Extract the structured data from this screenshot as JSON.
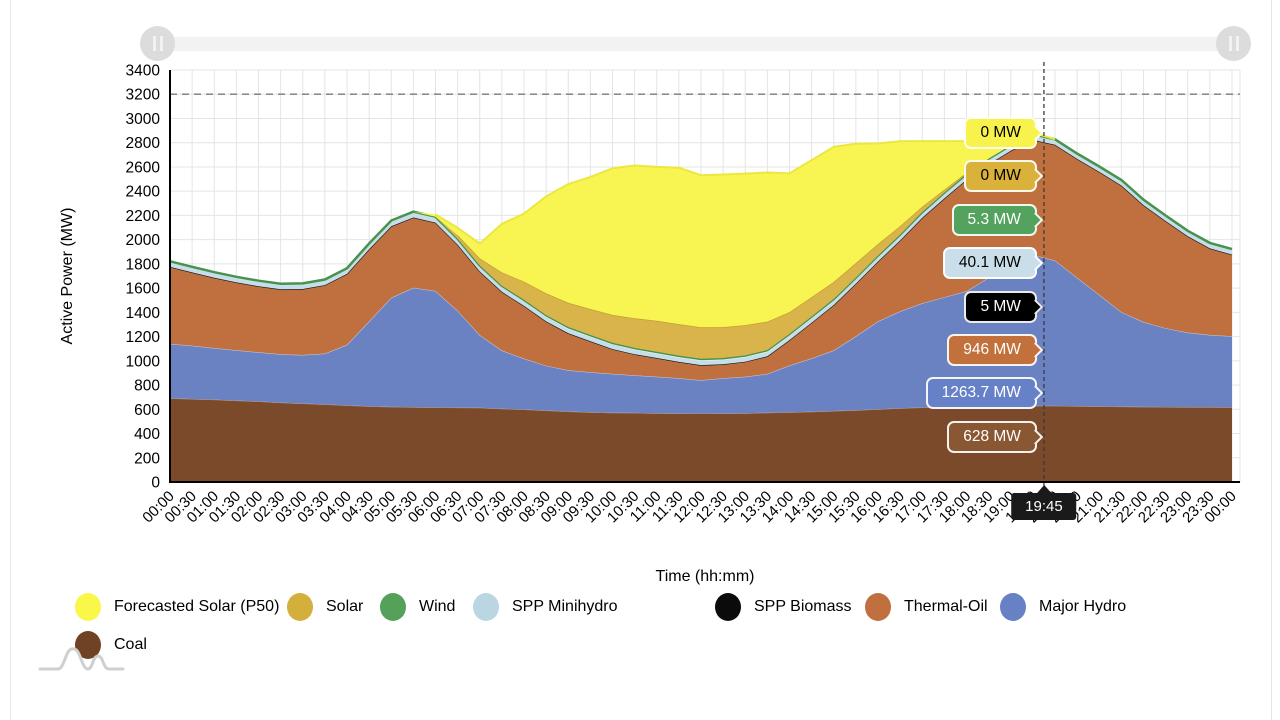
{
  "axes": {
    "y_title": "Active Power (MW)",
    "x_title": "Time (hh:mm)",
    "y_min": 0,
    "y_max": 3400,
    "y_step": 200,
    "reference_line": 3200
  },
  "scrollbar": {
    "grip_icon": "pause-bars"
  },
  "chart_data": {
    "type": "area",
    "stacked": true,
    "title": "",
    "xlabel": "Time (hh:mm)",
    "ylabel": "Active Power (MW)",
    "ylim": [
      0,
      3400
    ],
    "grid": true,
    "legend_position": "bottom",
    "x": [
      "00:00",
      "00:30",
      "01:00",
      "01:30",
      "02:00",
      "02:30",
      "03:00",
      "03:30",
      "04:00",
      "04:30",
      "05:00",
      "05:30",
      "06:00",
      "06:30",
      "07:00",
      "07:30",
      "08:00",
      "08:30",
      "09:00",
      "09:30",
      "10:00",
      "10:30",
      "11:00",
      "11:30",
      "12:00",
      "12:30",
      "13:00",
      "13:30",
      "14:00",
      "14:30",
      "15:00",
      "15:30",
      "16:00",
      "16:30",
      "17:00",
      "17:30",
      "18:00",
      "18:30",
      "19:00",
      "19:30",
      "20:00",
      "20:30",
      "21:00",
      "21:30",
      "22:00",
      "22:30",
      "23:00",
      "23:30",
      "00:00"
    ],
    "crosshair": {
      "time": "19:45",
      "index": 39.5
    },
    "series": [
      {
        "key": "coal",
        "name": "Coal",
        "color": "#7B4A2A",
        "tooltip": {
          "label": "628 MW",
          "bg": "#8A5733",
          "fg": "#ffffff"
        },
        "values": [
          690,
          685,
          680,
          672,
          665,
          655,
          648,
          640,
          632,
          625,
          620,
          618,
          616,
          614,
          612,
          605,
          598,
          590,
          582,
          576,
          572,
          570,
          568,
          566,
          565,
          566,
          568,
          572,
          576,
          580,
          586,
          592,
          600,
          608,
          615,
          620,
          624,
          626,
          628,
          628,
          628,
          626,
          624,
          622,
          620,
          619,
          618,
          618,
          617
        ]
      },
      {
        "key": "major_hydro",
        "name": "Major Hydro",
        "color": "#6A81C2",
        "tooltip": {
          "label": "1263.7 MW",
          "bg": "#6781C8",
          "fg": "#ffffff"
        },
        "values": [
          450,
          440,
          425,
          415,
          405,
          400,
          400,
          420,
          500,
          700,
          900,
          985,
          960,
          800,
          600,
          480,
          420,
          370,
          340,
          330,
          320,
          310,
          300,
          290,
          275,
          290,
          300,
          320,
          385,
          440,
          500,
          610,
          725,
          800,
          860,
          905,
          950,
          1060,
          1160,
          1245,
          1200,
          1060,
          920,
          780,
          700,
          650,
          615,
          595,
          585
        ]
      },
      {
        "key": "thermal_oil",
        "name": "Thermal-Oil",
        "color": "#C06F3E",
        "tooltip": {
          "label": "946 MW",
          "bg": "#C2713C",
          "fg": "#ffffff"
        },
        "values": [
          630,
          600,
          575,
          555,
          540,
          530,
          540,
          560,
          580,
          590,
          585,
          575,
          560,
          540,
          520,
          480,
          430,
          360,
          300,
          250,
          200,
          170,
          150,
          130,
          120,
          110,
          120,
          140,
          205,
          290,
          370,
          430,
          490,
          580,
          700,
          810,
          916,
          930,
          940,
          945,
          950,
          975,
          1010,
          1040,
          960,
          880,
          790,
          710,
          670
        ]
      },
      {
        "key": "spp_biomass",
        "name": "SPP Biomass",
        "color": "#0B0B0B",
        "tooltip": {
          "label": "5 MW",
          "bg": "#000000",
          "fg": "#ffffff"
        },
        "values": [
          5,
          5,
          5,
          5,
          5,
          5,
          5,
          5,
          5,
          5,
          5,
          5,
          5,
          5,
          5,
          5,
          5,
          5,
          5,
          5,
          5,
          5,
          5,
          5,
          5,
          5,
          5,
          5,
          5,
          5,
          5,
          5,
          5,
          5,
          5,
          5,
          5,
          5,
          5,
          5,
          5,
          5,
          5,
          5,
          5,
          5,
          5,
          5,
          5
        ]
      },
      {
        "key": "spp_minihydro",
        "name": "SPP Minihydro",
        "color": "#C6DEE7",
        "tooltip": {
          "label": "40.1 MW",
          "bg": "#C9DEE9",
          "fg": "#000000"
        },
        "values": [
          40,
          40,
          40,
          40,
          40,
          40,
          40,
          40,
          40,
          40,
          40,
          40,
          40,
          40,
          40,
          40,
          40,
          40,
          40,
          40,
          40,
          40,
          40,
          40,
          40,
          40,
          40,
          40,
          40,
          40,
          40,
          40,
          40,
          40,
          40,
          40,
          40,
          40,
          40,
          40,
          40,
          40,
          40,
          40,
          40,
          40,
          40,
          40,
          40
        ]
      },
      {
        "key": "wind",
        "name": "Wind",
        "color": "#57A15C",
        "tooltip": {
          "label": "5.3 MW",
          "bg": "#53A35F",
          "fg": "#ffffff"
        },
        "values": [
          6,
          6,
          6,
          6,
          6,
          6,
          6,
          6,
          7,
          8,
          8,
          8,
          8,
          9,
          10,
          10,
          11,
          12,
          12,
          12,
          12,
          12,
          12,
          12,
          12,
          12,
          12,
          12,
          11,
          11,
          10,
          10,
          9,
          9,
          8,
          8,
          7,
          7,
          6,
          6,
          5,
          5,
          5,
          5,
          5,
          5,
          5,
          5,
          5
        ]
      },
      {
        "key": "solar",
        "name": "Solar",
        "color": "#D8B44A",
        "tooltip": {
          "label": "0 MW",
          "bg": "#D9B13B",
          "fg": "#000000"
        },
        "values": [
          0,
          0,
          0,
          0,
          0,
          0,
          0,
          0,
          0,
          0,
          0,
          0,
          0,
          30,
          60,
          110,
          150,
          180,
          200,
          215,
          230,
          245,
          255,
          260,
          260,
          255,
          250,
          235,
          180,
          160,
          140,
          120,
          95,
          70,
          45,
          25,
          10,
          2,
          0,
          0,
          0,
          0,
          0,
          0,
          0,
          0,
          0,
          0,
          0
        ]
      },
      {
        "key": "forecast_solar",
        "name": "Forecasted Solar (P50)",
        "color": "#F8F552",
        "tooltip": {
          "label": "0 MW",
          "bg": "#F7F24C",
          "fg": "#000000"
        },
        "values": [
          0,
          0,
          0,
          0,
          0,
          0,
          0,
          0,
          0,
          0,
          0,
          0,
          20,
          60,
          120,
          400,
          560,
          800,
          980,
          1090,
          1210,
          1260,
          1270,
          1290,
          1255,
          1260,
          1250,
          1230,
          1145,
          1130,
          1115,
          985,
          830,
          700,
          540,
          400,
          260,
          140,
          60,
          15,
          0,
          0,
          0,
          0,
          0,
          0,
          0,
          0,
          0
        ]
      }
    ]
  },
  "legend": {
    "items": [
      {
        "label": "Forecasted Solar (P50)",
        "color": "#F9F748"
      },
      {
        "label": "Solar",
        "color": "#D4AF3B"
      },
      {
        "label": "Wind",
        "color": "#55A15A"
      },
      {
        "label": "SPP Minihydro",
        "color": "#B9D6E2"
      },
      {
        "label": "SPP Biomass",
        "color": "#0B0B0B"
      },
      {
        "label": "Thermal-Oil",
        "color": "#C06F3E"
      },
      {
        "label": "Major Hydro",
        "color": "#6781C4"
      },
      {
        "label": "Coal",
        "color": "#6F4223"
      }
    ]
  }
}
